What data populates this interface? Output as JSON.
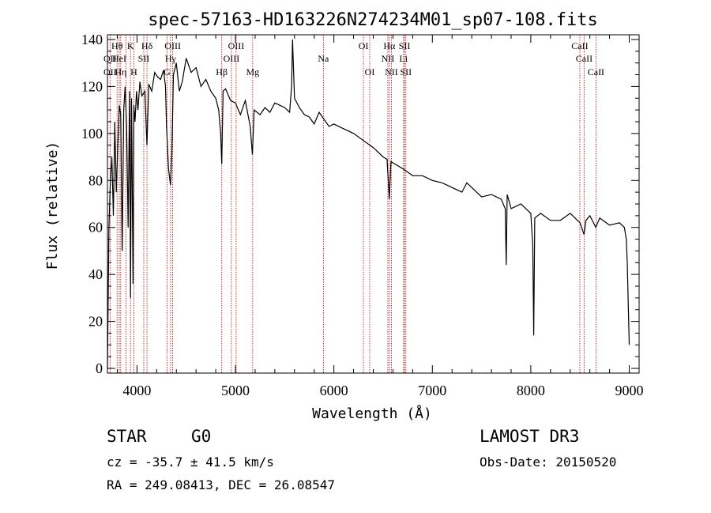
{
  "chart_data": {
    "type": "line",
    "title": "spec-57163-HD163226N274234M01_sp07-108.fits",
    "xlabel": "Wavelength (Å)",
    "ylabel": "Flux (relative)",
    "xlim": [
      3700,
      9100
    ],
    "ylim": [
      -2,
      142
    ],
    "xticks": [
      4000,
      5000,
      6000,
      7000,
      8000,
      9000
    ],
    "yticks": [
      0,
      20,
      40,
      60,
      80,
      100,
      120,
      140
    ],
    "series": [
      {
        "name": "spectrum",
        "x": [
          3700,
          3715,
          3730,
          3745,
          3760,
          3775,
          3790,
          3805,
          3820,
          3835,
          3850,
          3865,
          3880,
          3895,
          3910,
          3925,
          3934,
          3945,
          3960,
          3968,
          3980,
          3995,
          4010,
          4030,
          4050,
          4080,
          4101,
          4120,
          4150,
          4180,
          4210,
          4240,
          4270,
          4290,
          4300,
          4320,
          4340,
          4355,
          4370,
          4400,
          4430,
          4460,
          4500,
          4550,
          4600,
          4650,
          4700,
          4750,
          4800,
          4830,
          4850,
          4861,
          4875,
          4900,
          4950,
          5000,
          5050,
          5100,
          5150,
          5172,
          5190,
          5250,
          5300,
          5350,
          5400,
          5450,
          5500,
          5550,
          5570,
          5580,
          5600,
          5650,
          5700,
          5750,
          5800,
          5850,
          5900,
          5950,
          6000,
          6100,
          6200,
          6300,
          6400,
          6500,
          6540,
          6563,
          6580,
          6620,
          6700,
          6800,
          6900,
          7000,
          7100,
          7200,
          7300,
          7350,
          7400,
          7500,
          7600,
          7700,
          7740,
          7750,
          7760,
          7800,
          7900,
          8000,
          8020,
          8030,
          8040,
          8100,
          8200,
          8300,
          8400,
          8500,
          8540,
          8560,
          8600,
          8660,
          8700,
          8800,
          8900,
          8950,
          8970,
          8980,
          9000
        ],
        "values": [
          0,
          60,
          80,
          90,
          65,
          105,
          75,
          95,
          112,
          108,
          50,
          110,
          120,
          102,
          60,
          118,
          30,
          115,
          36,
          112,
          105,
          118,
          110,
          122,
          116,
          118,
          95,
          121,
          118,
          126,
          124,
          123,
          127,
          120,
          103,
          85,
          78,
          92,
          125,
          130,
          118,
          122,
          132,
          126,
          128,
          120,
          123,
          118,
          115,
          110,
          100,
          87,
          118,
          119,
          114,
          113,
          108,
          114,
          103,
          91,
          110,
          108,
          111,
          109,
          113,
          112,
          111,
          109,
          120,
          140,
          115,
          111,
          108,
          107,
          104,
          109,
          106,
          103,
          104,
          102,
          100,
          97,
          94,
          90,
          89,
          72,
          88,
          87,
          85,
          82,
          82,
          80,
          79,
          77,
          75,
          79,
          77,
          73,
          74,
          72,
          68,
          44,
          74,
          68,
          70,
          66,
          52,
          14,
          64,
          66,
          63,
          63,
          66,
          62,
          57,
          63,
          65,
          60,
          64,
          61,
          62,
          60,
          55,
          45,
          10
        ]
      }
    ],
    "lines": [
      {
        "label": "Hθ",
        "x": 3798,
        "row": 0
      },
      {
        "label": "OII",
        "x": 3727,
        "row": 1
      },
      {
        "label": "OII",
        "x": 3727,
        "row": 2
      },
      {
        "label": "HeI",
        "x": 3820,
        "row": 1
      },
      {
        "label": "Hη",
        "x": 3835,
        "row": 2
      },
      {
        "label": "K",
        "x": 3934,
        "row": 0
      },
      {
        "label": "H",
        "x": 3968,
        "row": 2
      },
      {
        "label": "SII",
        "x": 4069,
        "row": 1
      },
      {
        "label": "Hδ",
        "x": 4102,
        "row": 0
      },
      {
        "label": "OIII",
        "x": 4363,
        "row": 0
      },
      {
        "label": "Hγ",
        "x": 4341,
        "row": 1
      },
      {
        "label": "G",
        "x": 4305,
        "row": 2
      },
      {
        "label": "Hβ",
        "x": 4861,
        "row": 2
      },
      {
        "label": "OIII",
        "x": 5007,
        "row": 0
      },
      {
        "label": "OIII",
        "x": 4959,
        "row": 1
      },
      {
        "label": "Mg",
        "x": 5175,
        "row": 2
      },
      {
        "label": "Na",
        "x": 5893,
        "row": 1
      },
      {
        "label": "OI",
        "x": 6300,
        "row": 0
      },
      {
        "label": "OI",
        "x": 6364,
        "row": 2
      },
      {
        "label": "Hα",
        "x": 6563,
        "row": 0
      },
      {
        "label": "NII",
        "x": 6548,
        "row": 1
      },
      {
        "label": "NII",
        "x": 6584,
        "row": 2
      },
      {
        "label": "Li",
        "x": 6708,
        "row": 1
      },
      {
        "label": "SII",
        "x": 6717,
        "row": 0
      },
      {
        "label": "SII",
        "x": 6731,
        "row": 2
      },
      {
        "label": "CaII",
        "x": 8498,
        "row": 0
      },
      {
        "label": "CaII",
        "x": 8542,
        "row": 1
      },
      {
        "label": "CaII",
        "x": 8662,
        "row": 2
      }
    ],
    "line_marker_x": [
      3727,
      3798,
      3820,
      3835,
      3889,
      3934,
      3968,
      4069,
      4102,
      4305,
      4341,
      4363,
      4861,
      4959,
      5007,
      5175,
      5893,
      6300,
      6364,
      6548,
      6563,
      6584,
      6708,
      6717,
      6731,
      8498,
      8542,
      8662
    ]
  },
  "info": {
    "object_class": "STAR",
    "subclass": "G0",
    "survey": "LAMOST DR3",
    "cz": "cz = -35.7 ± 41.5 km/s",
    "obs_date": "Obs-Date: 20150520",
    "coords": "RA = 249.08413, DEC =  26.08547"
  },
  "colors": {
    "marker": "#c00000",
    "spectrum": "#000000"
  }
}
